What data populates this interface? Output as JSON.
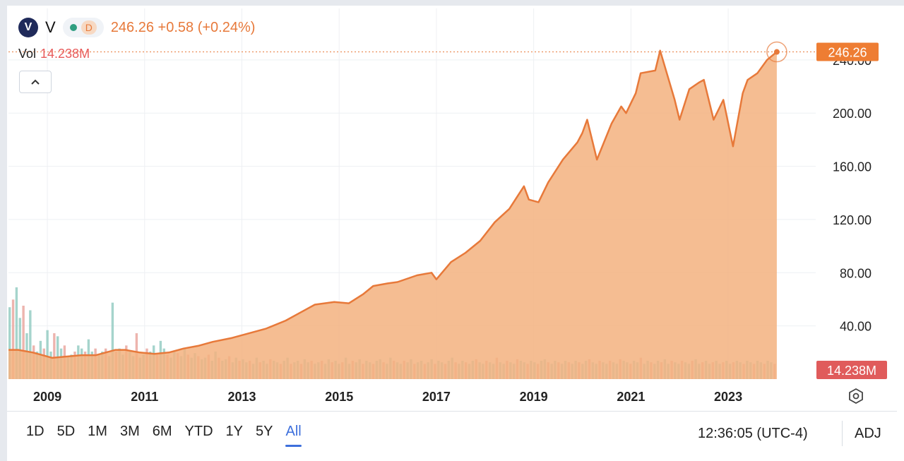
{
  "legend": {
    "logo_letter": "V",
    "symbol": "V",
    "interval_badge": "D",
    "price_line": "246.26 +0.58 (+0.24%)",
    "volume_label": "Vol",
    "volume_value": "14.238M"
  },
  "time_ranges": [
    "1D",
    "5D",
    "1M",
    "3M",
    "6M",
    "YTD",
    "1Y",
    "5Y",
    "All"
  ],
  "active_range": "All",
  "clock": "12:36:05 (UTC-4)",
  "adj_label": "ADJ",
  "price_tag": "246.26",
  "volume_tag": "14.238M",
  "colors": {
    "line": "#e7793a",
    "area": "#f3b27f",
    "price_tag": "#ee7d33",
    "volume_tag": "#e05b5b",
    "vol_up": "#8fc9bf",
    "vol_down": "#e9a19a"
  },
  "chart_data": {
    "type": "area",
    "ylim": [
      0,
      250
    ],
    "xlim": [
      2008.2,
      2024.8
    ],
    "y_ticks": [
      "40.00",
      "80.00",
      "120.00",
      "160.00",
      "200.00",
      "240.00"
    ],
    "x_ticks": [
      "2009",
      "2011",
      "2013",
      "2015",
      "2017",
      "2019",
      "2021",
      "2023"
    ],
    "series": [
      {
        "x": [
          2008.2,
          2008.4,
          2008.7,
          2008.9,
          2009.1,
          2009.4,
          2009.7,
          2010.0,
          2010.2,
          2010.4,
          2010.6,
          2010.9,
          2011.2,
          2011.5,
          2011.8,
          2012.1,
          2012.4,
          2012.8,
          2013.1,
          2013.5,
          2013.9,
          2014.2,
          2014.5,
          2014.9,
          2015.2,
          2015.5,
          2015.7,
          2016.0,
          2016.2,
          2016.6,
          2016.9,
          2017.0,
          2017.3,
          2017.6,
          2017.9,
          2018.2,
          2018.5,
          2018.8,
          2018.9,
          2019.1,
          2019.3,
          2019.6,
          2019.9,
          2020.0,
          2020.1,
          2020.3,
          2020.6,
          2020.8,
          2020.9,
          2021.1,
          2021.2,
          2021.5,
          2021.6,
          2021.9,
          2022.0,
          2022.2,
          2022.4,
          2022.5,
          2022.7,
          2022.9,
          2023.1,
          2023.3,
          2023.4,
          2023.6,
          2023.8,
          2024.0
        ],
        "values": [
          22,
          22,
          20,
          18,
          16,
          17,
          18,
          18,
          20,
          22,
          22,
          20,
          19,
          20,
          23,
          25,
          28,
          31,
          34,
          38,
          44,
          50,
          56,
          58,
          57,
          64,
          70,
          72,
          73,
          78,
          80,
          75,
          88,
          95,
          104,
          118,
          128,
          145,
          135,
          133,
          148,
          165,
          178,
          185,
          195,
          165,
          192,
          205,
          200,
          215,
          230,
          232,
          247,
          210,
          195,
          218,
          223,
          225,
          195,
          210,
          175,
          215,
          225,
          230,
          240,
          246
        ]
      }
    ],
    "volume": {
      "x_start": 2008.2,
      "x_end": 2024.0,
      "max": 60,
      "values": [
        47,
        52,
        60,
        40,
        48,
        30,
        45,
        22,
        18,
        25,
        20,
        32,
        18,
        30,
        28,
        20,
        22,
        15,
        16,
        18,
        22,
        20,
        18,
        26,
        18,
        20,
        16,
        18,
        20,
        15,
        50,
        18,
        20,
        16,
        22,
        18,
        15,
        30,
        14,
        16,
        20,
        18,
        22,
        16,
        25,
        20,
        16,
        14,
        18,
        17,
        15,
        20,
        16,
        14,
        17,
        15,
        13,
        14,
        16,
        12,
        18,
        14,
        12,
        13,
        15,
        11,
        14,
        12,
        13,
        11,
        12,
        10,
        14,
        11,
        12,
        10,
        13,
        12,
        11,
        10,
        12,
        14,
        10,
        11,
        12,
        10,
        13,
        11,
        12,
        10,
        11,
        12,
        10,
        13,
        11,
        12,
        10,
        11,
        14,
        10,
        12,
        11,
        13,
        10,
        12,
        11,
        10,
        12,
        13,
        11,
        10,
        14,
        12,
        11,
        10,
        12,
        11,
        13,
        10,
        11,
        12,
        10,
        11,
        13,
        10,
        12,
        11,
        10,
        12,
        14,
        11,
        10,
        12,
        11,
        10,
        12,
        13,
        11,
        10,
        12,
        11,
        10,
        14,
        11,
        10,
        12,
        11,
        10,
        13,
        12,
        11,
        10,
        12,
        11,
        10,
        12,
        13,
        11,
        10,
        12,
        11,
        10,
        12,
        11,
        10,
        12,
        11,
        10,
        12,
        13,
        11,
        10,
        12,
        11,
        10,
        12,
        11,
        10,
        13,
        12,
        11,
        10,
        12,
        11,
        14,
        10,
        12,
        11,
        10,
        12,
        11,
        13,
        10,
        12,
        11,
        10,
        12,
        11,
        10,
        12,
        13,
        10,
        11,
        12,
        10,
        11,
        12,
        10,
        11,
        12,
        10,
        11,
        12,
        11,
        10,
        12,
        11,
        10,
        12,
        11,
        10,
        12,
        11,
        10
      ]
    }
  }
}
